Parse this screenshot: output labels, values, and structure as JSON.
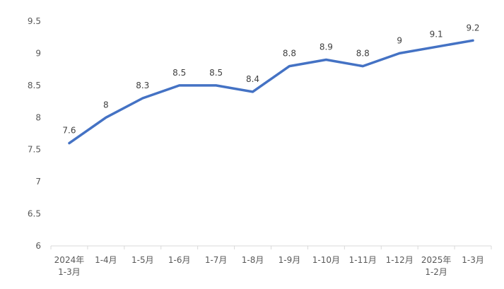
{
  "chart_data": {
    "type": "line",
    "categories": [
      [
        "2024年",
        "1-3月"
      ],
      [
        "1-4月"
      ],
      [
        "1-5月"
      ],
      [
        "1-6月"
      ],
      [
        "1-7月"
      ],
      [
        "1-8月"
      ],
      [
        "1-9月"
      ],
      [
        "1-10月"
      ],
      [
        "1-11月"
      ],
      [
        "1-12月"
      ],
      [
        "2025年",
        "1-2月"
      ],
      [
        "1-3月"
      ]
    ],
    "series": [
      {
        "values": [
          7.6,
          8,
          8.3,
          8.5,
          8.5,
          8.4,
          8.8,
          8.9,
          8.8,
          9,
          9.1,
          9.2
        ],
        "color": "#4472C4"
      }
    ],
    "data_labels": [
      "7.6",
      "8",
      "8.3",
      "8.5",
      "8.5",
      "8.4",
      "8.8",
      "8.9",
      "8.8",
      "9",
      "9.1",
      "9.2"
    ],
    "y_ticks": [
      "6",
      "6.5",
      "7",
      "7.5",
      "8",
      "8.5",
      "9",
      "9.5"
    ],
    "y_tick_values": [
      6,
      6.5,
      7,
      7.5,
      8,
      8.5,
      9,
      9.5
    ],
    "ylim": [
      6,
      9.5
    ],
    "grid": false,
    "legend": "none",
    "axis_color": "#D9D9D9",
    "label_color": "#595959"
  }
}
